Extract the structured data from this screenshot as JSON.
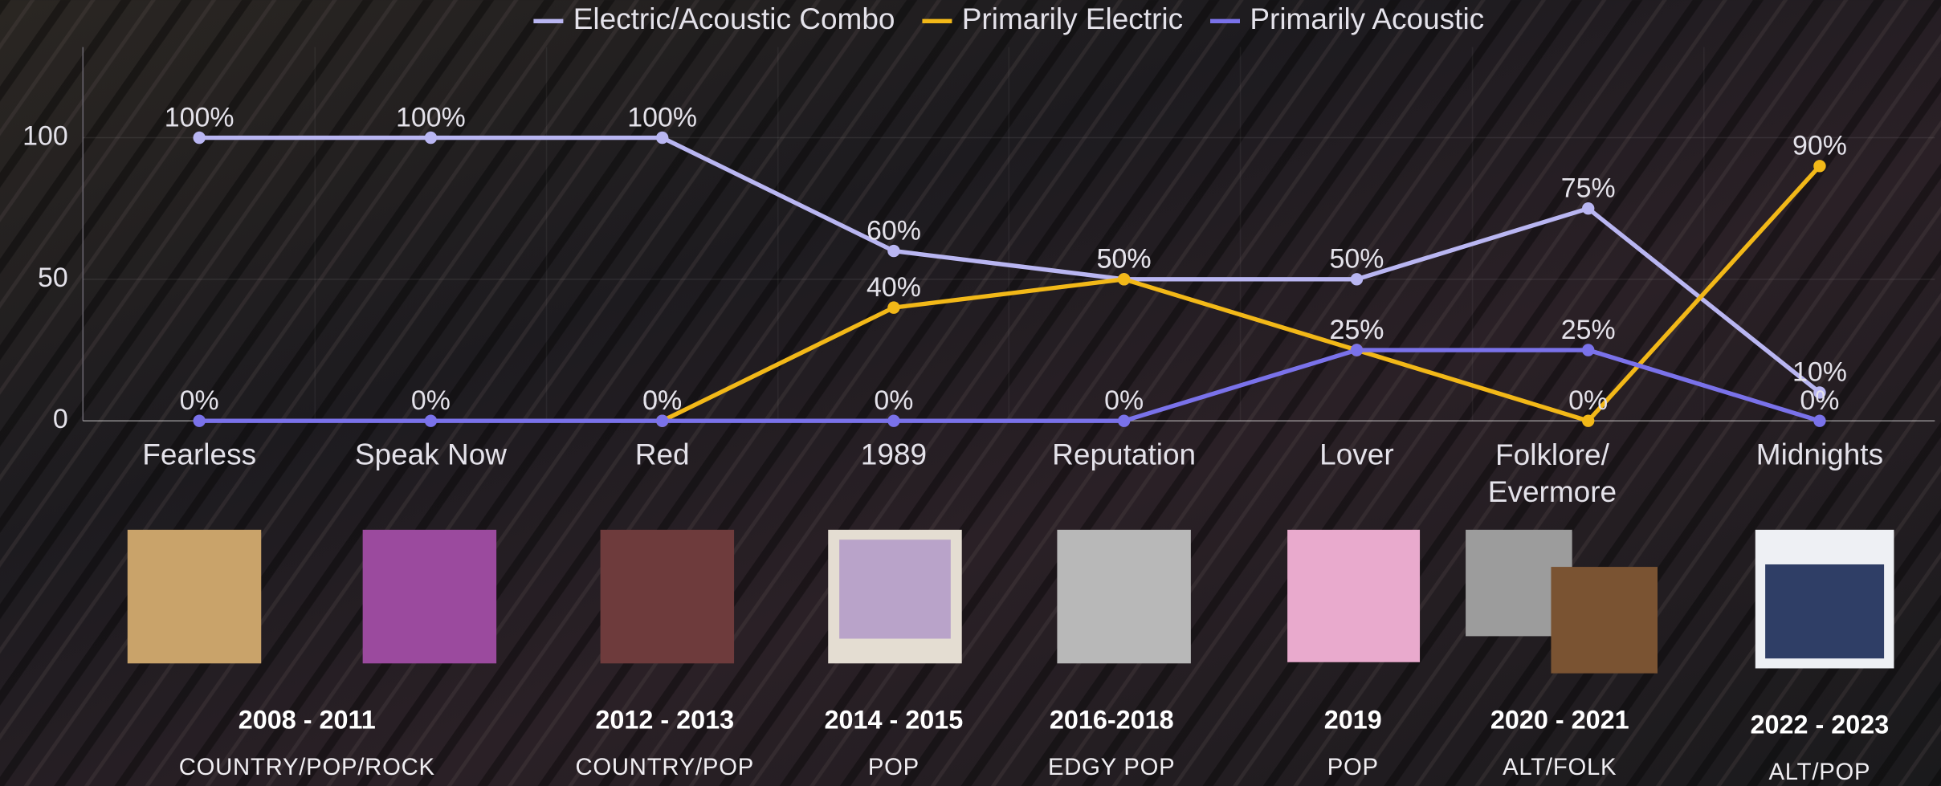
{
  "chart_data": {
    "type": "line",
    "categories": [
      "Fearless",
      "Speak Now",
      "Red",
      "1989",
      "Reputation",
      "Lover",
      "Folklore/ Evermore",
      "Midnights"
    ],
    "series": [
      {
        "name": "Electric/Acoustic Combo",
        "color": "#b9b6f2",
        "values": [
          100,
          100,
          100,
          60,
          50,
          50,
          75,
          10
        ],
        "value_labels": [
          "100%",
          "100%",
          "100%",
          "60%",
          "50%",
          "50%",
          "75%",
          "10%"
        ]
      },
      {
        "name": "Primarily Electric",
        "color": "#f2b818",
        "values": [
          null,
          null,
          0,
          40,
          50,
          25,
          0,
          90
        ],
        "value_labels": [
          null,
          null,
          "0%",
          "40%",
          "50%",
          "25%",
          "0%",
          "90%"
        ]
      },
      {
        "name": "Primarily Acoustic",
        "color": "#7a72ea",
        "values": [
          0,
          0,
          0,
          0,
          0,
          25,
          25,
          0
        ],
        "value_labels": [
          "0%",
          "0%",
          "0%",
          "0%",
          "0%",
          "25%",
          "25%",
          "0%"
        ]
      }
    ],
    "ylim": [
      0,
      132
    ],
    "yticks": [
      0,
      50,
      100
    ],
    "grid": true,
    "legend": "top"
  },
  "albums": [
    {
      "years": "2008 - 2011",
      "genre": "COUNTRY/POP/ROCK"
    },
    {
      "years": "2012 - 2013",
      "genre": "COUNTRY/POP"
    },
    {
      "years": "2014 - 2015",
      "genre": "POP"
    },
    {
      "years": "2016-2018",
      "genre": "EDGY POP"
    },
    {
      "years": "2019",
      "genre": "POP"
    },
    {
      "years": "2020 - 2021",
      "genre": "ALT/FOLK"
    },
    {
      "years": "2022 - 2023",
      "genre": "ALT/POP"
    }
  ]
}
